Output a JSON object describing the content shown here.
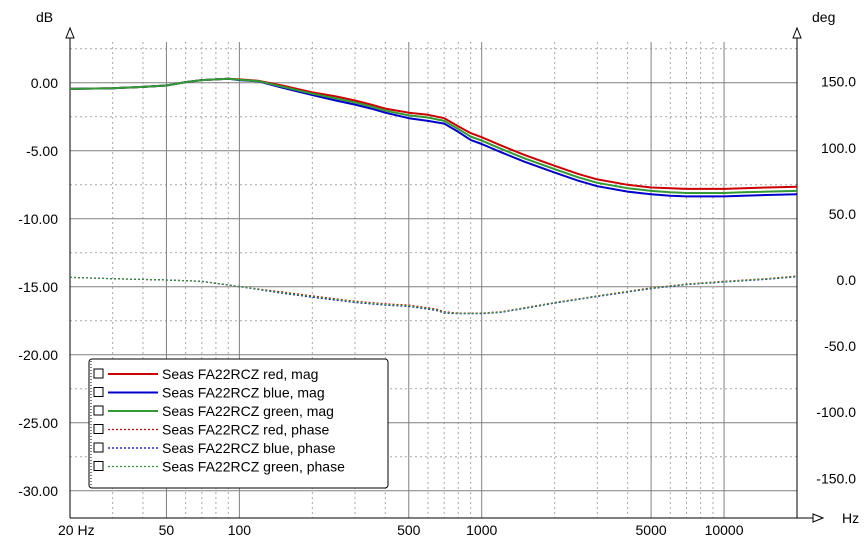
{
  "chart_data": {
    "type": "line",
    "x_scale": "log",
    "xlim": [
      20,
      20000
    ],
    "ylim_left": [
      -32,
      3
    ],
    "ylim_right": [
      -180,
      180
    ],
    "y_left_unit": "dB",
    "y_right_unit": "deg",
    "x_unit": "Hz",
    "grid": true,
    "legend_position": "bottom-left",
    "x_ticks": [
      {
        "value": 20,
        "label": "20 Hz"
      },
      {
        "value": 50,
        "label": "50"
      },
      {
        "value": 100,
        "label": "100"
      },
      {
        "value": 500,
        "label": "500"
      },
      {
        "value": 1000,
        "label": "1000"
      },
      {
        "value": 5000,
        "label": "5000"
      },
      {
        "value": 10000,
        "label": "10000"
      }
    ],
    "y_left_ticks": [
      {
        "value": 0,
        "label": "0.00"
      },
      {
        "value": -5,
        "label": "-5.00"
      },
      {
        "value": -10,
        "label": "-10.00"
      },
      {
        "value": -15,
        "label": "-15.00"
      },
      {
        "value": -20,
        "label": "-20.00"
      },
      {
        "value": -25,
        "label": "-25.00"
      },
      {
        "value": -30,
        "label": "-30.00"
      }
    ],
    "y_right_ticks": [
      {
        "value": 150,
        "label": "150.0"
      },
      {
        "value": 100,
        "label": "100.0"
      },
      {
        "value": 50,
        "label": "50.0"
      },
      {
        "value": 0,
        "label": "0.0"
      },
      {
        "value": -50,
        "label": "-50.0"
      },
      {
        "value": -100,
        "label": "-100.0"
      },
      {
        "value": -150,
        "label": "-150.0"
      }
    ],
    "series": [
      {
        "name": "Seas FA22RCZ red, mag",
        "axis": "left",
        "style": "solid",
        "color": "#cc0000",
        "points": [
          [
            20,
            -0.45
          ],
          [
            30,
            -0.4
          ],
          [
            40,
            -0.3
          ],
          [
            50,
            -0.2
          ],
          [
            60,
            0.05
          ],
          [
            70,
            0.2
          ],
          [
            80,
            0.25
          ],
          [
            90,
            0.3
          ],
          [
            100,
            0.25
          ],
          [
            120,
            0.15
          ],
          [
            150,
            -0.2
          ],
          [
            200,
            -0.7
          ],
          [
            250,
            -1.0
          ],
          [
            300,
            -1.3
          ],
          [
            350,
            -1.6
          ],
          [
            400,
            -1.9
          ],
          [
            500,
            -2.2
          ],
          [
            600,
            -2.35
          ],
          [
            700,
            -2.6
          ],
          [
            800,
            -3.2
          ],
          [
            900,
            -3.7
          ],
          [
            1000,
            -4.0
          ],
          [
            1200,
            -4.6
          ],
          [
            1500,
            -5.3
          ],
          [
            2000,
            -6.1
          ],
          [
            2500,
            -6.7
          ],
          [
            3000,
            -7.1
          ],
          [
            4000,
            -7.5
          ],
          [
            5000,
            -7.7
          ],
          [
            6000,
            -7.75
          ],
          [
            7000,
            -7.8
          ],
          [
            8000,
            -7.8
          ],
          [
            10000,
            -7.8
          ],
          [
            12000,
            -7.75
          ],
          [
            15000,
            -7.7
          ],
          [
            20000,
            -7.65
          ]
        ]
      },
      {
        "name": "Seas FA22RCZ blue, mag",
        "axis": "left",
        "style": "solid",
        "color": "#0000cc",
        "points": [
          [
            20,
            -0.45
          ],
          [
            30,
            -0.4
          ],
          [
            40,
            -0.3
          ],
          [
            50,
            -0.2
          ],
          [
            60,
            0.05
          ],
          [
            70,
            0.2
          ],
          [
            80,
            0.25
          ],
          [
            90,
            0.3
          ],
          [
            100,
            0.2
          ],
          [
            120,
            0.1
          ],
          [
            150,
            -0.35
          ],
          [
            200,
            -0.9
          ],
          [
            250,
            -1.3
          ],
          [
            300,
            -1.6
          ],
          [
            350,
            -1.9
          ],
          [
            400,
            -2.2
          ],
          [
            500,
            -2.6
          ],
          [
            600,
            -2.8
          ],
          [
            700,
            -3.0
          ],
          [
            800,
            -3.6
          ],
          [
            900,
            -4.2
          ],
          [
            1000,
            -4.5
          ],
          [
            1200,
            -5.1
          ],
          [
            1500,
            -5.8
          ],
          [
            2000,
            -6.6
          ],
          [
            2500,
            -7.2
          ],
          [
            3000,
            -7.6
          ],
          [
            4000,
            -8.0
          ],
          [
            5000,
            -8.2
          ],
          [
            6000,
            -8.3
          ],
          [
            7000,
            -8.35
          ],
          [
            8000,
            -8.35
          ],
          [
            10000,
            -8.35
          ],
          [
            12000,
            -8.3
          ],
          [
            15000,
            -8.25
          ],
          [
            20000,
            -8.2
          ]
        ]
      },
      {
        "name": "Seas FA22RCZ green, mag",
        "axis": "left",
        "style": "solid",
        "color": "#339933",
        "points": [
          [
            20,
            -0.45
          ],
          [
            30,
            -0.4
          ],
          [
            40,
            -0.3
          ],
          [
            50,
            -0.2
          ],
          [
            60,
            0.05
          ],
          [
            70,
            0.2
          ],
          [
            80,
            0.25
          ],
          [
            90,
            0.3
          ],
          [
            100,
            0.22
          ],
          [
            120,
            0.12
          ],
          [
            150,
            -0.28
          ],
          [
            200,
            -0.8
          ],
          [
            250,
            -1.15
          ],
          [
            300,
            -1.45
          ],
          [
            350,
            -1.75
          ],
          [
            400,
            -2.05
          ],
          [
            500,
            -2.4
          ],
          [
            600,
            -2.55
          ],
          [
            700,
            -2.8
          ],
          [
            800,
            -3.4
          ],
          [
            900,
            -3.95
          ],
          [
            1000,
            -4.25
          ],
          [
            1200,
            -4.85
          ],
          [
            1500,
            -5.55
          ],
          [
            2000,
            -6.35
          ],
          [
            2500,
            -6.95
          ],
          [
            3000,
            -7.35
          ],
          [
            4000,
            -7.75
          ],
          [
            5000,
            -7.95
          ],
          [
            6000,
            -8.05
          ],
          [
            7000,
            -8.1
          ],
          [
            8000,
            -8.1
          ],
          [
            10000,
            -8.1
          ],
          [
            12000,
            -8.05
          ],
          [
            15000,
            -8.0
          ],
          [
            20000,
            -7.95
          ]
        ]
      },
      {
        "name": "Seas FA22RCZ red, phase",
        "axis": "right",
        "style": "dotted",
        "color": "#cc0000",
        "points": [
          [
            20,
            2
          ],
          [
            30,
            1
          ],
          [
            50,
            0
          ],
          [
            70,
            -1
          ],
          [
            100,
            -5
          ],
          [
            150,
            -9
          ],
          [
            200,
            -12
          ],
          [
            300,
            -16
          ],
          [
            400,
            -18
          ],
          [
            500,
            -19
          ],
          [
            600,
            -21
          ],
          [
            650,
            -22
          ],
          [
            700,
            -24
          ],
          [
            800,
            -25
          ],
          [
            1000,
            -25
          ],
          [
            1200,
            -24
          ],
          [
            1500,
            -21
          ],
          [
            2000,
            -17
          ],
          [
            3000,
            -12
          ],
          [
            5000,
            -6
          ],
          [
            7000,
            -3
          ],
          [
            10000,
            -1
          ],
          [
            15000,
            1
          ],
          [
            20000,
            3
          ]
        ]
      },
      {
        "name": "Seas FA22RCZ blue, phase",
        "axis": "right",
        "style": "dotted",
        "color": "#0000cc",
        "points": [
          [
            20,
            2
          ],
          [
            30,
            1
          ],
          [
            50,
            0
          ],
          [
            70,
            -1
          ],
          [
            100,
            -5
          ],
          [
            150,
            -10
          ],
          [
            200,
            -13
          ],
          [
            300,
            -17
          ],
          [
            400,
            -19
          ],
          [
            500,
            -20
          ],
          [
            600,
            -22
          ],
          [
            650,
            -23
          ],
          [
            700,
            -25
          ],
          [
            800,
            -25.5
          ],
          [
            1000,
            -25.5
          ],
          [
            1200,
            -24.5
          ],
          [
            1500,
            -21.5
          ],
          [
            2000,
            -17.5
          ],
          [
            3000,
            -12.5
          ],
          [
            5000,
            -6.5
          ],
          [
            7000,
            -3.5
          ],
          [
            10000,
            -1.5
          ],
          [
            15000,
            0.5
          ],
          [
            20000,
            2.5
          ]
        ]
      },
      {
        "name": "Seas FA22RCZ green, phase",
        "axis": "right",
        "style": "dotted",
        "color": "#339933",
        "points": [
          [
            20,
            2
          ],
          [
            30,
            1
          ],
          [
            50,
            0
          ],
          [
            70,
            -1
          ],
          [
            100,
            -5
          ],
          [
            150,
            -9.5
          ],
          [
            200,
            -12.5
          ],
          [
            300,
            -16.5
          ],
          [
            400,
            -18.5
          ],
          [
            500,
            -19.5
          ],
          [
            600,
            -21.5
          ],
          [
            650,
            -22.5
          ],
          [
            700,
            -24.5
          ],
          [
            800,
            -25.2
          ],
          [
            1000,
            -25.2
          ],
          [
            1200,
            -24.2
          ],
          [
            1500,
            -21.2
          ],
          [
            2000,
            -17.2
          ],
          [
            3000,
            -12.2
          ],
          [
            5000,
            -6.2
          ],
          [
            7000,
            -3.2
          ],
          [
            10000,
            -1.2
          ],
          [
            15000,
            0.8
          ],
          [
            20000,
            2.8
          ]
        ]
      }
    ]
  }
}
